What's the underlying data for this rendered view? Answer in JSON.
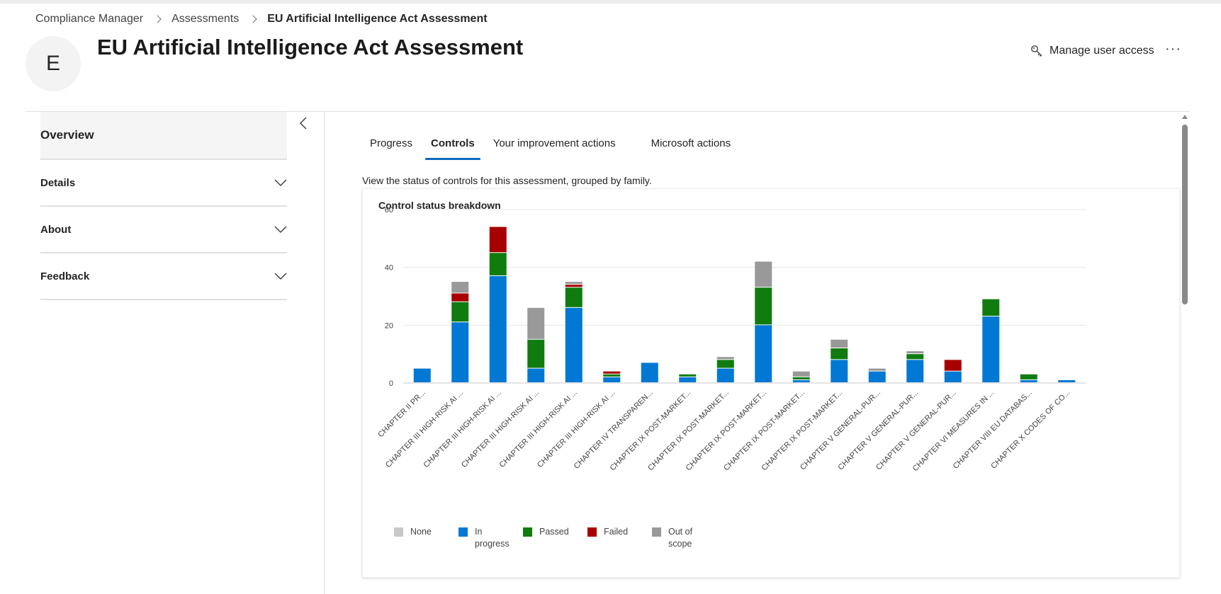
{
  "breadcrumb": {
    "items": [
      "Compliance Manager",
      "Assessments"
    ],
    "current": "EU Artificial Intelligence Act Assessment"
  },
  "header": {
    "avatar_letter": "E",
    "title": "EU Artificial Intelligence Act Assessment",
    "manage_access": "Manage user access",
    "more": "···",
    "icon": "key-icon"
  },
  "sidebar": {
    "overview": "Overview",
    "sections": [
      {
        "label": "Details"
      },
      {
        "label": "About"
      },
      {
        "label": "Feedback"
      }
    ]
  },
  "tabs": [
    {
      "label": "Progress",
      "active": false
    },
    {
      "label": "Controls",
      "active": true
    },
    {
      "label": "Your improvement actions",
      "active": false
    },
    {
      "label": "Microsoft actions",
      "active": false
    }
  ],
  "subtitle": "View the status of controls for this assessment, grouped by family.",
  "card": {
    "title": "Control status breakdown"
  },
  "colors": {
    "none": "#c8c8c8",
    "in_progress": "#0078d4",
    "passed": "#107c10",
    "failed": "#a80000",
    "out_of_scope": "#999999",
    "accent": "#0f6cbd"
  },
  "legend": [
    {
      "label": "None",
      "color": "#c8c8c8"
    },
    {
      "label": "In progress",
      "color": "#0078d4"
    },
    {
      "label": "Passed",
      "color": "#107c10"
    },
    {
      "label": "Failed",
      "color": "#a80000"
    },
    {
      "label": "Out of scope",
      "color": "#999999"
    }
  ],
  "chart_data": {
    "type": "bar",
    "stacked": true,
    "title": "Control status breakdown",
    "ylim": [
      0,
      60
    ],
    "yticks": [
      0,
      20,
      40,
      60
    ],
    "grid": true,
    "legend_position": "bottom-left",
    "categories": [
      "CHAPTER II PR...",
      "CHAPTER III HIGH-RISK AI ...",
      "CHAPTER III HIGH-RISK AI ...",
      "CHAPTER III HIGH-RISK AI ...",
      "CHAPTER III HIGH-RISK AI ...",
      "CHAPTER III HIGH-RISK AI ...",
      "CHAPTER IV TRANSPAREN...",
      "CHAPTER IX POST-MARKET...",
      "CHAPTER IX POST-MARKET...",
      "CHAPTER IX POST-MARKET...",
      "CHAPTER IX POST-MARKET...",
      "CHAPTER IX POST-MARKET...",
      "CHAPTER V GENERAL-PUR...",
      "CHAPTER V GENERAL-PUR...",
      "CHAPTER V GENERAL-PUR...",
      "CHAPTER VI MEASURES IN ...",
      "CHAPTER VIII EU DATABAS...",
      "CHAPTER X CODES OF CO..."
    ],
    "series": [
      {
        "name": "None",
        "color": "#c8c8c8",
        "values": [
          0,
          0,
          0,
          0,
          0,
          0,
          0,
          0,
          0,
          0,
          0,
          0,
          0,
          0,
          0,
          0,
          0,
          0
        ]
      },
      {
        "name": "In progress",
        "color": "#0078d4",
        "values": [
          5,
          21,
          37,
          5,
          26,
          2,
          7,
          2,
          5,
          20,
          1,
          8,
          4,
          8,
          4,
          23,
          1,
          1
        ]
      },
      {
        "name": "Passed",
        "color": "#107c10",
        "values": [
          0,
          7,
          8,
          10,
          7,
          1,
          0,
          1,
          3,
          13,
          1,
          4,
          0,
          2,
          0,
          6,
          2,
          0
        ]
      },
      {
        "name": "Failed",
        "color": "#a80000",
        "values": [
          0,
          3,
          9,
          0,
          1,
          1,
          0,
          0,
          0,
          0,
          0,
          0,
          0,
          0,
          4,
          0,
          0,
          0
        ]
      },
      {
        "name": "Out of scope",
        "color": "#999999",
        "values": [
          0,
          4,
          0,
          11,
          1,
          0,
          0,
          0,
          1,
          9,
          2,
          3,
          1,
          1,
          0,
          0,
          0,
          0
        ]
      }
    ]
  }
}
